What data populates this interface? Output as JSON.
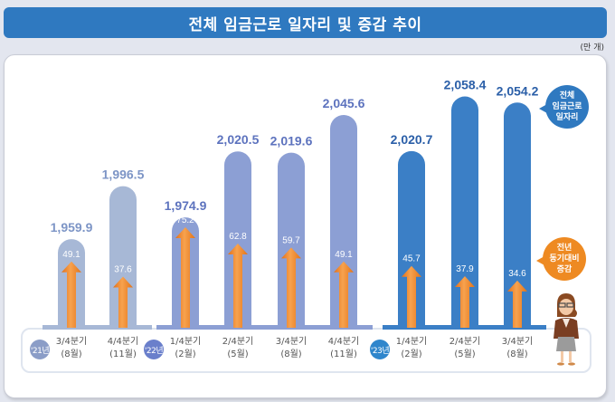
{
  "title": "전체 임금근로 일자리 및 증감 추이",
  "unit_label": "(만 개)",
  "callouts": {
    "total": [
      "전체",
      "임금근로",
      "일자리"
    ],
    "change": [
      "전년",
      "동기대비",
      "증감"
    ]
  },
  "colors": {
    "title_bg": "#2f79c0",
    "bar_2021": "#a7b8d6",
    "bar_2022": "#8c9fd4",
    "bar_2023": "#3b7fc6",
    "arrow": "#ee8a22",
    "label_2021": "#7d95c6",
    "label_2022": "#5d73be",
    "label_2023": "#2b5fa8"
  },
  "chart_data": {
    "type": "bar",
    "title": "전체 임금근로 일자리 및 증감 추이",
    "ylabel": "(만 개)",
    "years": [
      {
        "label": "'21년",
        "color": "#8b9dc7",
        "start": 0,
        "count": 2
      },
      {
        "label": "'22년",
        "color": "#6a7fcb",
        "start": 2,
        "count": 4
      },
      {
        "label": "'23년",
        "color": "#2f86cc",
        "start": 6,
        "count": 3
      }
    ],
    "categories": [
      {
        "quarter": "3/4분기",
        "month": "(8월)"
      },
      {
        "quarter": "4/4분기",
        "month": "(11월)"
      },
      {
        "quarter": "1/4분기",
        "month": "(2월)"
      },
      {
        "quarter": "2/4분기",
        "month": "(5월)"
      },
      {
        "quarter": "3/4분기",
        "month": "(8월)"
      },
      {
        "quarter": "4/4분기",
        "month": "(11월)"
      },
      {
        "quarter": "1/4분기",
        "month": "(2월)"
      },
      {
        "quarter": "2/4분기",
        "month": "(5월)"
      },
      {
        "quarter": "3/4분기",
        "month": "(8월)"
      }
    ],
    "series": [
      {
        "name": "전체 임금근로 일자리",
        "values": [
          1959.9,
          1996.5,
          1974.9,
          2020.5,
          2019.6,
          2045.6,
          2020.7,
          2058.4,
          2054.2
        ],
        "labels": [
          "1,959.9",
          "1,996.5",
          "1,974.9",
          "2,020.5",
          "2,019.6",
          "2,045.6",
          "2,020.7",
          "2,058.4",
          "2,054.2"
        ]
      },
      {
        "name": "전년 동기대비 증감",
        "values": [
          49.1,
          37.6,
          75.2,
          62.8,
          59.7,
          49.1,
          45.7,
          37.9,
          34.6
        ],
        "labels": [
          "49.1",
          "37.6",
          "75.2",
          "62.8",
          "59.7",
          "49.1",
          "45.7",
          "37.9",
          "34.6"
        ]
      }
    ]
  }
}
